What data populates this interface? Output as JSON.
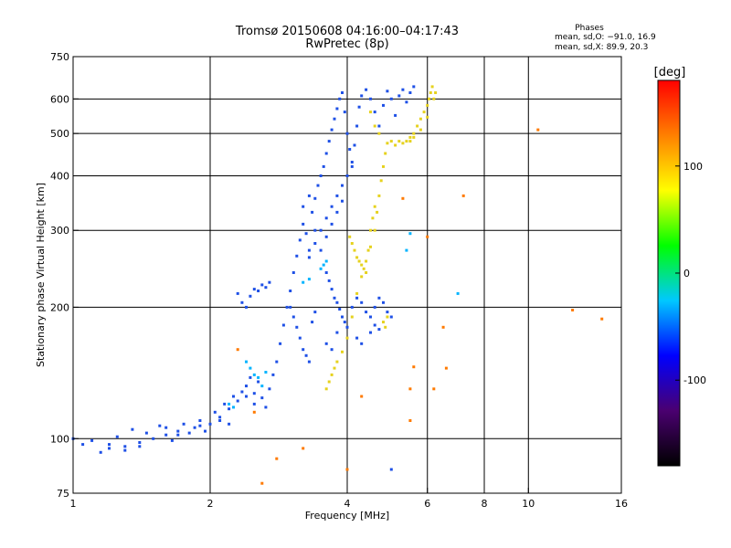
{
  "chart_data": {
    "type": "scatter",
    "title": "Tromsø 20150608 04:16:00–04:17:43",
    "subtitle": "RwPretec (8p)",
    "xlabel": "Frequency [MHz]",
    "ylabel": "Stationary phase Virtual Height [km]",
    "x_scale": "log",
    "y_scale": "log",
    "xlim": [
      1,
      16
    ],
    "ylim": [
      75,
      750
    ],
    "x_ticks": [
      1,
      2,
      4,
      6,
      8,
      10,
      16
    ],
    "y_ticks": [
      75,
      100,
      200,
      300,
      400,
      500,
      600,
      750
    ],
    "x_gridlines": [
      2,
      4,
      6,
      8,
      10
    ],
    "y_gridlines": [
      100,
      200,
      300,
      400,
      500,
      600
    ],
    "grid": true,
    "legend": {
      "title": "Phases",
      "lines": [
        "mean, sd,O: −91.0, 16.9",
        "mean, sd,X:  89.9, 20.3"
      ],
      "placement": "top-right"
    },
    "colorbar": {
      "label": "[deg]",
      "range": [
        -180,
        180
      ],
      "ticks": [
        100,
        0,
        -100
      ],
      "colormap": "rainbow",
      "colors": [
        "#000000",
        "#4a0070",
        "#0000ff",
        "#00c8ff",
        "#00ff00",
        "#ffff00",
        "#ff8000",
        "#ff0000"
      ]
    },
    "series": [
      {
        "mode": "O",
        "color": "#1e50e6",
        "points": [
          [
            1.0,
            100
          ],
          [
            1.05,
            97
          ],
          [
            1.1,
            99
          ],
          [
            1.15,
            93
          ],
          [
            1.2,
            95
          ],
          [
            1.25,
            101
          ],
          [
            1.3,
            94
          ],
          [
            1.35,
            105
          ],
          [
            1.4,
            96
          ],
          [
            1.45,
            103
          ],
          [
            1.5,
            100
          ],
          [
            1.55,
            107
          ],
          [
            1.6,
            102
          ],
          [
            1.65,
            99
          ],
          [
            1.7,
            104
          ],
          [
            1.75,
            108
          ],
          [
            1.8,
            103
          ],
          [
            1.85,
            106
          ],
          [
            1.9,
            110
          ],
          [
            1.95,
            104
          ],
          [
            2.0,
            108
          ],
          [
            2.05,
            115
          ],
          [
            2.1,
            112
          ],
          [
            2.15,
            120
          ],
          [
            2.2,
            117
          ],
          [
            2.25,
            125
          ],
          [
            2.3,
            122
          ],
          [
            2.35,
            128
          ],
          [
            2.4,
            132
          ],
          [
            2.45,
            138
          ],
          [
            2.5,
            127
          ],
          [
            2.55,
            135
          ],
          [
            2.6,
            124
          ],
          [
            2.65,
            118
          ],
          [
            2.7,
            130
          ],
          [
            2.75,
            140
          ],
          [
            2.8,
            150
          ],
          [
            2.85,
            165
          ],
          [
            2.9,
            182
          ],
          [
            2.95,
            200
          ],
          [
            3.0,
            218
          ],
          [
            3.05,
            240
          ],
          [
            3.1,
            262
          ],
          [
            3.15,
            285
          ],
          [
            3.2,
            310
          ],
          [
            3.25,
            295
          ],
          [
            3.3,
            270
          ],
          [
            3.35,
            330
          ],
          [
            3.4,
            355
          ],
          [
            3.45,
            380
          ],
          [
            3.5,
            400
          ],
          [
            3.55,
            420
          ],
          [
            3.6,
            450
          ],
          [
            3.65,
            480
          ],
          [
            3.7,
            510
          ],
          [
            3.75,
            540
          ],
          [
            3.8,
            570
          ],
          [
            3.85,
            600
          ],
          [
            3.9,
            620
          ],
          [
            3.95,
            560
          ],
          [
            4.0,
            500
          ],
          [
            4.05,
            460
          ],
          [
            4.1,
            430
          ],
          [
            4.15,
            470
          ],
          [
            4.2,
            520
          ],
          [
            4.25,
            575
          ],
          [
            4.3,
            610
          ],
          [
            4.4,
            630
          ],
          [
            4.5,
            600
          ],
          [
            4.6,
            560
          ],
          [
            4.7,
            520
          ],
          [
            4.8,
            580
          ],
          [
            4.9,
            625
          ],
          [
            5.0,
            600
          ],
          [
            5.1,
            550
          ],
          [
            5.2,
            610
          ],
          [
            5.3,
            630
          ],
          [
            5.4,
            590
          ],
          [
            5.5,
            620
          ],
          [
            5.6,
            640
          ],
          [
            2.3,
            215
          ],
          [
            2.35,
            205
          ],
          [
            2.4,
            200
          ],
          [
            2.45,
            212
          ],
          [
            2.5,
            220
          ],
          [
            2.55,
            218
          ],
          [
            2.6,
            225
          ],
          [
            2.65,
            222
          ],
          [
            2.7,
            228
          ],
          [
            3.0,
            200
          ],
          [
            3.05,
            190
          ],
          [
            3.1,
            180
          ],
          [
            3.15,
            170
          ],
          [
            3.2,
            160
          ],
          [
            3.25,
            155
          ],
          [
            3.3,
            150
          ],
          [
            3.35,
            185
          ],
          [
            3.4,
            195
          ],
          [
            3.6,
            240
          ],
          [
            3.65,
            230
          ],
          [
            3.7,
            220
          ],
          [
            3.75,
            210
          ],
          [
            3.8,
            205
          ],
          [
            3.85,
            198
          ],
          [
            3.9,
            190
          ],
          [
            3.95,
            185
          ],
          [
            4.0,
            180
          ],
          [
            4.1,
            200
          ],
          [
            4.2,
            210
          ],
          [
            4.3,
            205
          ],
          [
            4.4,
            195
          ],
          [
            4.5,
            190
          ],
          [
            4.6,
            200
          ],
          [
            4.7,
            210
          ],
          [
            4.8,
            205
          ],
          [
            4.9,
            195
          ],
          [
            5.0,
            190
          ],
          [
            3.3,
            260
          ],
          [
            3.4,
            280
          ],
          [
            3.5,
            300
          ],
          [
            3.6,
            320
          ],
          [
            3.7,
            340
          ],
          [
            3.8,
            360
          ],
          [
            3.9,
            380
          ],
          [
            4.0,
            400
          ],
          [
            4.1,
            420
          ],
          [
            3.2,
            340
          ],
          [
            3.3,
            360
          ],
          [
            3.4,
            300
          ],
          [
            3.5,
            270
          ],
          [
            3.6,
            290
          ],
          [
            3.7,
            310
          ],
          [
            3.8,
            330
          ],
          [
            3.9,
            350
          ],
          [
            1.2,
            97
          ],
          [
            1.3,
            96
          ],
          [
            1.4,
            98
          ],
          [
            1.6,
            106
          ],
          [
            1.7,
            102
          ],
          [
            1.9,
            107
          ],
          [
            2.1,
            110
          ],
          [
            2.2,
            108
          ],
          [
            2.4,
            125
          ],
          [
            2.5,
            120
          ],
          [
            5.0,
            85
          ],
          [
            4.2,
            170
          ],
          [
            4.3,
            165
          ],
          [
            4.5,
            175
          ],
          [
            4.6,
            182
          ],
          [
            4.7,
            178
          ],
          [
            3.6,
            165
          ],
          [
            3.7,
            160
          ],
          [
            3.8,
            175
          ]
        ]
      },
      {
        "mode": "X",
        "color": "#e6d21e",
        "points": [
          [
            3.6,
            130
          ],
          [
            3.65,
            135
          ],
          [
            3.7,
            140
          ],
          [
            3.75,
            145
          ],
          [
            3.8,
            150
          ],
          [
            3.9,
            158
          ],
          [
            4.0,
            170
          ],
          [
            4.1,
            190
          ],
          [
            4.2,
            215
          ],
          [
            4.3,
            235
          ],
          [
            4.4,
            255
          ],
          [
            4.5,
            275
          ],
          [
            4.6,
            300
          ],
          [
            4.65,
            330
          ],
          [
            4.7,
            360
          ],
          [
            4.75,
            390
          ],
          [
            4.8,
            420
          ],
          [
            4.85,
            450
          ],
          [
            4.9,
            475
          ],
          [
            5.0,
            480
          ],
          [
            5.1,
            470
          ],
          [
            5.2,
            480
          ],
          [
            5.3,
            475
          ],
          [
            5.4,
            480
          ],
          [
            5.5,
            490
          ],
          [
            5.6,
            500
          ],
          [
            5.7,
            520
          ],
          [
            5.8,
            540
          ],
          [
            5.9,
            560
          ],
          [
            6.0,
            580
          ],
          [
            6.05,
            600
          ],
          [
            6.1,
            620
          ],
          [
            6.15,
            640
          ],
          [
            4.05,
            290
          ],
          [
            4.1,
            280
          ],
          [
            4.15,
            270
          ],
          [
            4.2,
            260
          ],
          [
            4.25,
            255
          ],
          [
            4.3,
            250
          ],
          [
            4.35,
            245
          ],
          [
            4.4,
            240
          ],
          [
            4.45,
            270
          ],
          [
            4.5,
            300
          ],
          [
            4.55,
            320
          ],
          [
            4.6,
            340
          ],
          [
            4.8,
            185
          ],
          [
            4.85,
            180
          ],
          [
            4.9,
            190
          ],
          [
            5.5,
            480
          ],
          [
            5.6,
            490
          ],
          [
            5.8,
            510
          ],
          [
            6.0,
            545
          ],
          [
            6.2,
            600
          ],
          [
            6.25,
            620
          ],
          [
            4.7,
            500
          ],
          [
            4.6,
            520
          ],
          [
            4.5,
            560
          ]
        ]
      },
      {
        "mode": "other",
        "color": "#00b4ff",
        "points": [
          [
            2.4,
            150
          ],
          [
            2.45,
            145
          ],
          [
            2.5,
            140
          ],
          [
            2.55,
            138
          ],
          [
            2.6,
            132
          ],
          [
            2.65,
            142
          ],
          [
            2.2,
            120
          ],
          [
            2.25,
            118
          ],
          [
            3.5,
            245
          ],
          [
            3.55,
            250
          ],
          [
            3.6,
            255
          ],
          [
            3.2,
            228
          ],
          [
            3.3,
            232
          ],
          [
            5.4,
            270
          ],
          [
            5.5,
            295
          ],
          [
            7.0,
            215
          ]
        ]
      },
      {
        "mode": "outliers",
        "color": "#ff7a00",
        "points": [
          [
            10.5,
            510
          ],
          [
            12.5,
            197
          ],
          [
            14.5,
            188
          ],
          [
            7.2,
            360
          ],
          [
            2.3,
            160
          ],
          [
            3.2,
            95
          ],
          [
            4.0,
            85
          ],
          [
            2.8,
            90
          ],
          [
            2.5,
            115
          ],
          [
            5.5,
            110
          ],
          [
            5.5,
            130
          ],
          [
            6.2,
            130
          ],
          [
            6.5,
            180
          ],
          [
            6.6,
            145
          ],
          [
            4.3,
            125
          ],
          [
            5.6,
            146
          ],
          [
            2.6,
            79
          ],
          [
            6.0,
            290
          ],
          [
            5.3,
            355
          ]
        ]
      }
    ]
  }
}
